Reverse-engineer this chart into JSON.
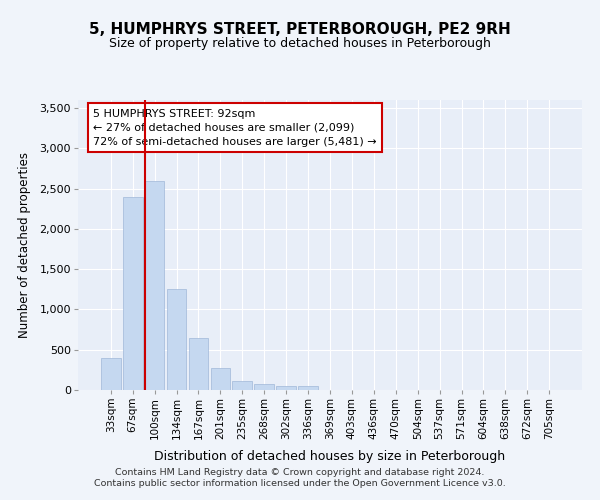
{
  "title": "5, HUMPHRYS STREET, PETERBOROUGH, PE2 9RH",
  "subtitle": "Size of property relative to detached houses in Peterborough",
  "xlabel": "Distribution of detached houses by size in Peterborough",
  "ylabel": "Number of detached properties",
  "categories": [
    "33sqm",
    "67sqm",
    "100sqm",
    "134sqm",
    "167sqm",
    "201sqm",
    "235sqm",
    "268sqm",
    "302sqm",
    "336sqm",
    "369sqm",
    "403sqm",
    "436sqm",
    "470sqm",
    "504sqm",
    "537sqm",
    "571sqm",
    "604sqm",
    "638sqm",
    "672sqm",
    "705sqm"
  ],
  "values": [
    400,
    2400,
    2600,
    1250,
    650,
    270,
    110,
    70,
    55,
    45,
    0,
    0,
    0,
    0,
    0,
    0,
    0,
    0,
    0,
    0,
    0
  ],
  "bar_color": "#c5d8f0",
  "bar_edge_color": "#a0b8d8",
  "vline_x": 1.575,
  "vline_color": "#cc0000",
  "annotation_text": "5 HUMPHRYS STREET: 92sqm\n← 27% of detached houses are smaller (2,099)\n72% of semi-detached houses are larger (5,481) →",
  "annotation_box_color": "#ffffff",
  "annotation_border_color": "#cc0000",
  "ylim": [
    0,
    3600
  ],
  "yticks": [
    0,
    500,
    1000,
    1500,
    2000,
    2500,
    3000,
    3500
  ],
  "footer": "Contains HM Land Registry data © Crown copyright and database right 2024.\nContains public sector information licensed under the Open Government Licence v3.0.",
  "bg_color": "#f0f4fa",
  "plot_bg_color": "#e8eef8",
  "title_fontsize": 11,
  "subtitle_fontsize": 9
}
